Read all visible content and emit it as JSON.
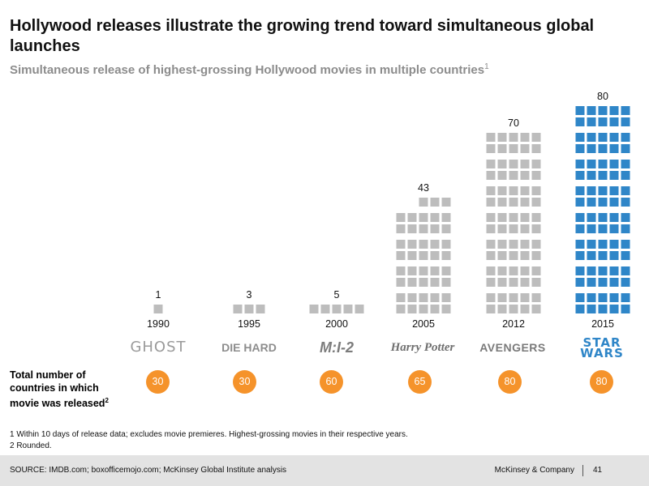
{
  "title": "Hollywood releases illustrate the growing trend toward simultaneous global launches",
  "subtitle": "Simultaneous release of highest-grossing Hollywood  movies in multiple countries",
  "subtitle_footnote_ref": "1",
  "colors": {
    "gray_square": "#bdbdbd",
    "blue_square": "#2f86c8",
    "orange_circle": "#f5932b"
  },
  "chart_data": {
    "type": "bar",
    "categories": [
      "1990",
      "1995",
      "2000",
      "2005",
      "2012",
      "2015"
    ],
    "movies": [
      "GHOST",
      "DIE HARD",
      "M:I-2",
      "Harry Potter",
      "AVENGERS",
      "STAR WARS"
    ],
    "values": [
      1,
      3,
      5,
      43,
      70,
      80
    ],
    "highlight_last": true
  },
  "total_label": "Total number of countries in which movie was released",
  "total_label_footnote_ref": "2",
  "totals": [
    "30",
    "30",
    "60",
    "65",
    "80",
    "80"
  ],
  "footnotes": [
    "1 Within 10 days of release data; excludes movie  premieres. Highest-grossing  movies  in their respective years.",
    "2 Rounded."
  ],
  "footer": {
    "source": "SOURCE: IMDB.com; boxofficemojo.com; McKinsey Global Institute analysis",
    "company": "McKinsey & Company",
    "page": "41"
  }
}
